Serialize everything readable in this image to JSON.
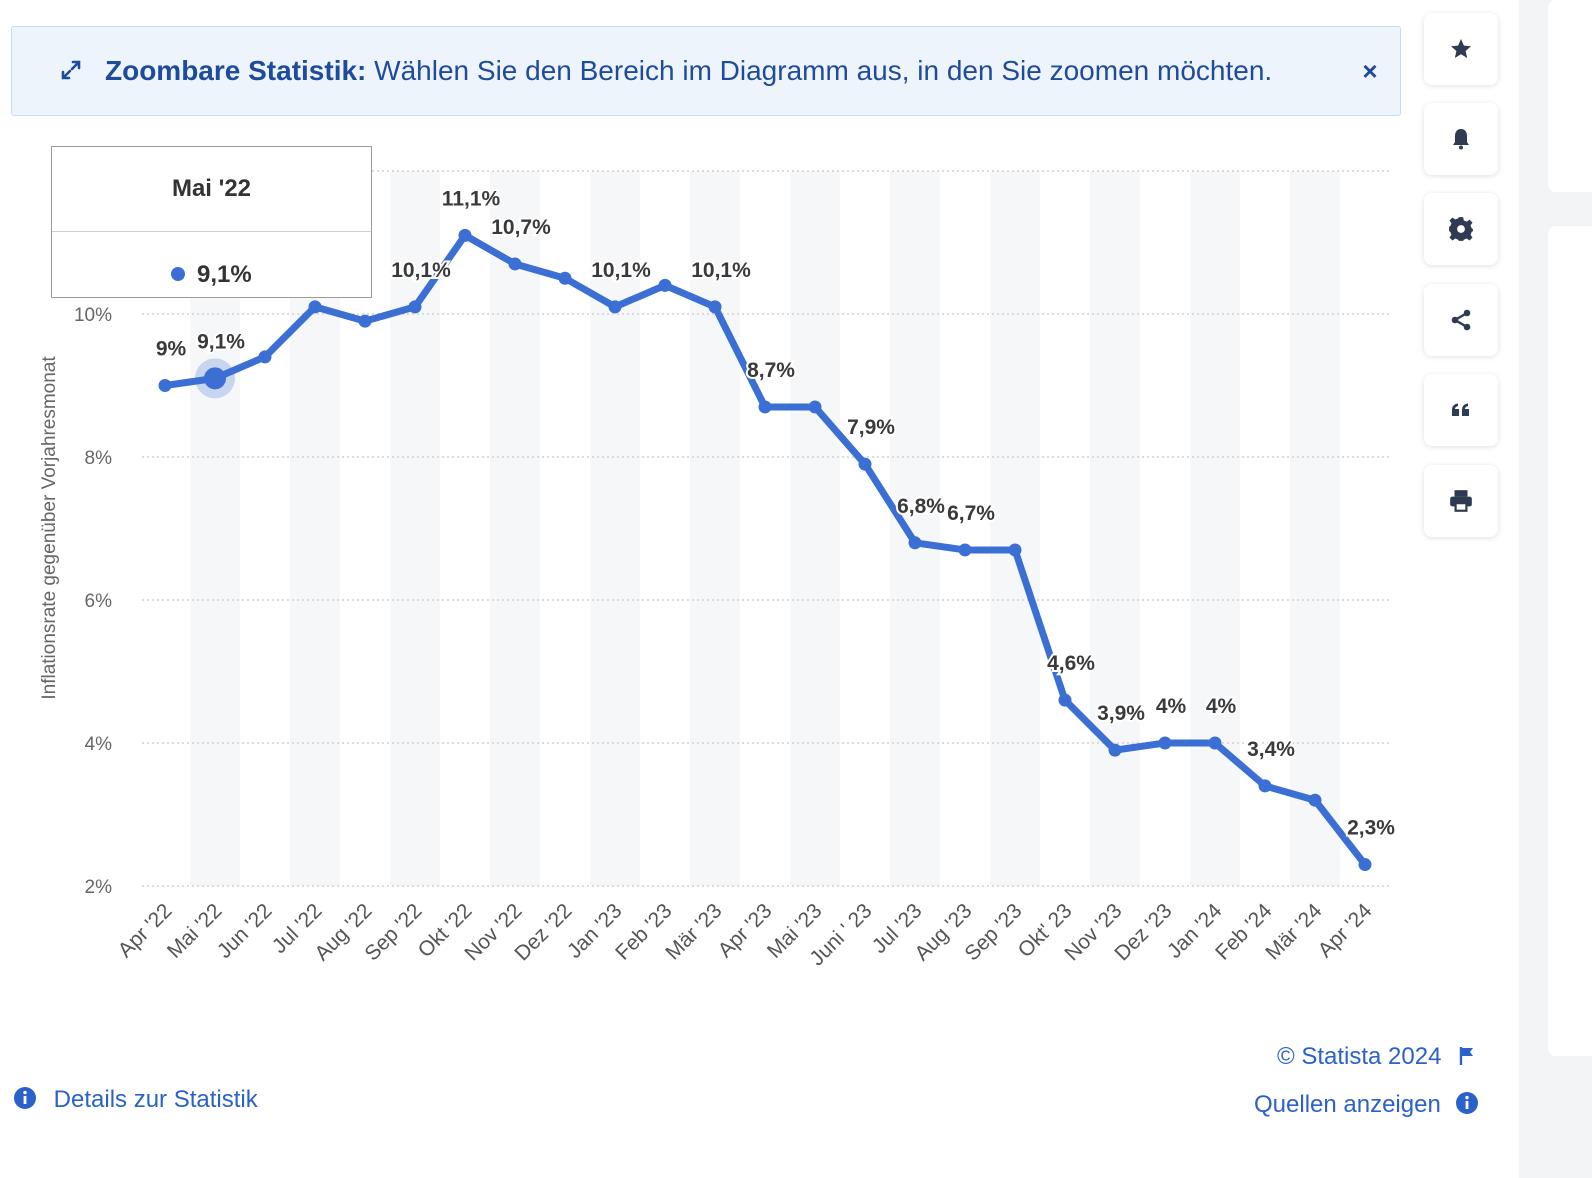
{
  "banner": {
    "title": "Zoombare Statistik:",
    "text": " Wählen Sie den Bereich im Diagramm aus, in den Sie zoomen möchten.",
    "close_glyph": "×"
  },
  "toolbar": [
    "star-icon",
    "bell-icon",
    "gear-icon",
    "share-icon",
    "quote-icon",
    "print-icon"
  ],
  "tooltip": {
    "title": "Mai '22",
    "value": "9,1%"
  },
  "footer": {
    "copyright": "© Statista 2024",
    "sources": "Quellen anzeigen",
    "details": "Details zur Statistik"
  },
  "colors": {
    "line": "#3b6fd4",
    "text_dark": "#333333",
    "link": "#2a62c9"
  },
  "chart_data": {
    "type": "line",
    "title": "",
    "ylabel": "Inflationsrate gegenüber Vorjahresmonat",
    "xlabel": "",
    "ylim": [
      2,
      12
    ],
    "yticks": [
      2,
      4,
      6,
      8,
      10
    ],
    "ytick_labels": [
      "2%",
      "4%",
      "6%",
      "8%",
      "10%"
    ],
    "categories": [
      "Apr '22",
      "Mai '22",
      "Jun '22",
      "Jul '22",
      "Aug '22",
      "Sep '22",
      "Okt '22",
      "Nov '22",
      "Dez '22",
      "Jan '23",
      "Feb '23",
      "Mär '23",
      "Apr '23",
      "Mai '23",
      "Juni ' 23",
      "Jul '23",
      "Aug '23",
      "Sep '23",
      "Okt' 23",
      "Nov '23",
      "Dez '23",
      "Jan '24",
      "Feb '24",
      "Mär '24",
      "Apr '24"
    ],
    "values": [
      9.0,
      9.1,
      9.4,
      10.1,
      9.9,
      10.1,
      11.1,
      10.7,
      10.5,
      10.1,
      10.4,
      10.1,
      8.7,
      8.7,
      7.9,
      6.8,
      6.7,
      6.7,
      4.6,
      3.9,
      4.0,
      4.0,
      3.4,
      3.2,
      2.3
    ],
    "data_labels": [
      "9%",
      "9,1%",
      "",
      "",
      "",
      "10,1%",
      "11,1%",
      "10,7%",
      "",
      "10,1%",
      "",
      "10,1%",
      "8,7%",
      "",
      "7,9%",
      "6,8%",
      "6,7%",
      "",
      "4,6%",
      "3,9%",
      "4%",
      "4%",
      "3,4%",
      "",
      "2,3%"
    ],
    "highlight_index": 1,
    "grid": true
  }
}
